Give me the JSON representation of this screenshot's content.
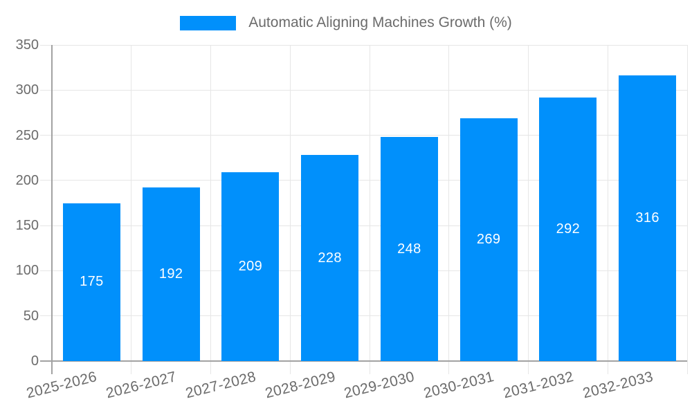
{
  "legend": {
    "label": "Automatic Aligning Machines Growth (%)"
  },
  "chart_data": {
    "type": "bar",
    "title": "Automatic Aligning Machines Growth (%)",
    "categories": [
      "2025-2026",
      "2026-2027",
      "2027-2028",
      "2028-2029",
      "2029-2030",
      "2030-2031",
      "2031-2032",
      "2032-2033"
    ],
    "values": [
      175,
      192,
      209,
      228,
      248,
      269,
      292,
      316
    ],
    "xlabel": "",
    "ylabel": "",
    "ylim": [
      0,
      350
    ],
    "yticks": [
      0,
      50,
      100,
      150,
      200,
      250,
      300,
      350
    ],
    "grid": true,
    "legend_position": "top",
    "bar_color": "#0190FB",
    "bar_label_color": "#FFFFFF",
    "axis_text_color": "#6B6B6B",
    "grid_color": "#E6E6E6",
    "axis_line_color": "#A2A2A2"
  }
}
